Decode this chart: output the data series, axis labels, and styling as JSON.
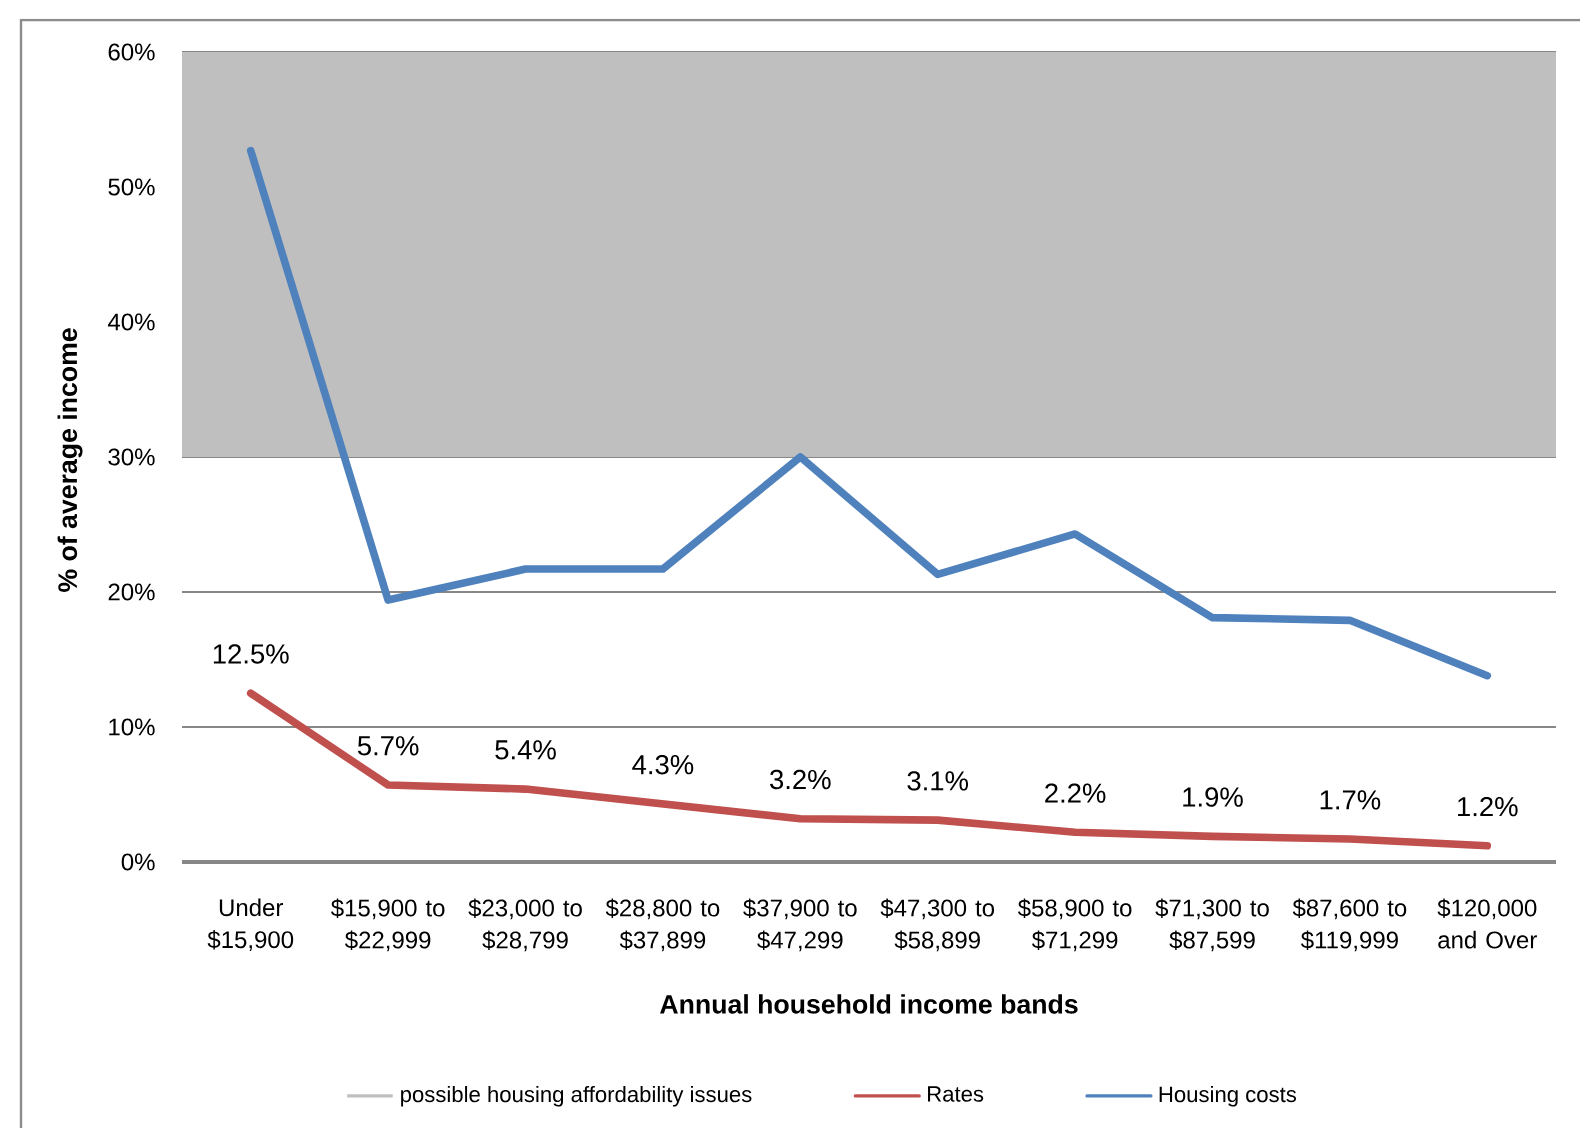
{
  "chart_data": {
    "type": "line",
    "xlabel": "Annual household income bands",
    "ylabel": "% of average income",
    "categories": [
      "Under $15,900",
      "$15,900 to $22,999",
      "$23,000 to $28,799",
      "$28,800 to $37,899",
      "$37,900 to $47,299",
      "$47,300 to $58,899",
      "$58,900 to $71,299",
      "$71,300 to $87,599",
      "$87,600 to $119,999",
      "$120,000 and Over"
    ],
    "series": [
      {
        "name": "Rates",
        "color": "#c0504d",
        "values": [
          12.5,
          5.7,
          5.4,
          4.3,
          3.2,
          3.1,
          2.2,
          1.9,
          1.7,
          1.2
        ],
        "value_labels": [
          "12.5%",
          "5.7%",
          "5.4%",
          "4.3%",
          "3.2%",
          "3.1%",
          "2.2%",
          "1.9%",
          "1.7%",
          "1.2%"
        ]
      },
      {
        "name": "Housing costs",
        "color": "#4f81bd",
        "values": [
          52.7,
          19.4,
          21.7,
          21.7,
          30.0,
          21.3,
          24.3,
          18.1,
          17.9,
          13.8
        ]
      }
    ],
    "ylim": [
      0,
      60
    ],
    "yticks": [
      {
        "value": 0,
        "label": "0%"
      },
      {
        "value": 10,
        "label": "10%"
      },
      {
        "value": 20,
        "label": "20%"
      },
      {
        "value": 30,
        "label": "30%"
      },
      {
        "value": 40,
        "label": "40%"
      },
      {
        "value": 50,
        "label": "50%"
      },
      {
        "value": 60,
        "label": "60%"
      }
    ],
    "grid": "y",
    "legend": "bottom",
    "bands": [
      {
        "axis": "y",
        "from": 30,
        "to": 60,
        "label": "possible housing affordability issues",
        "color": "#bfbfbf"
      }
    ]
  }
}
